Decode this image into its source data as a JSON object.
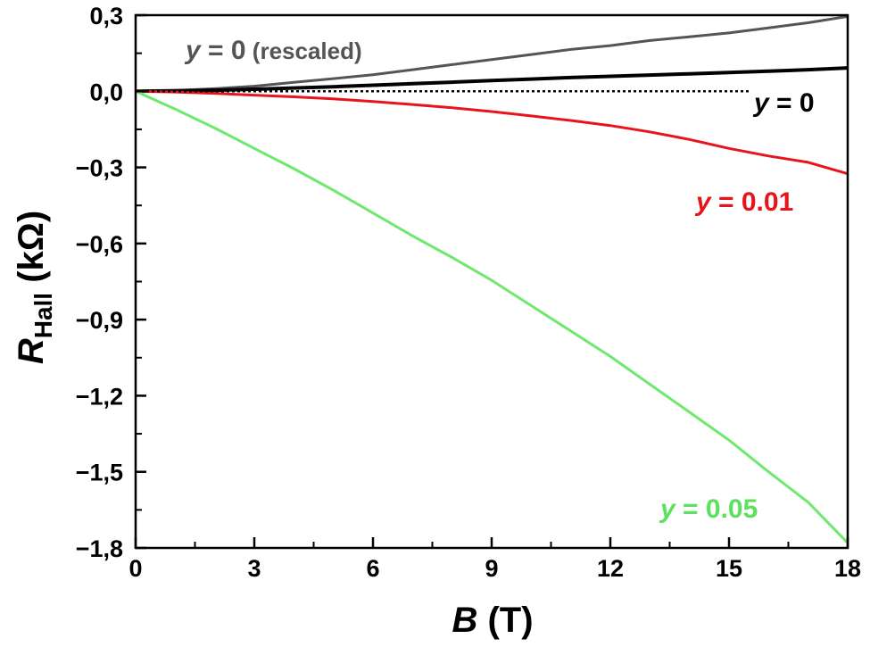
{
  "chart_data": {
    "type": "line",
    "xlabel": {
      "var": "B",
      "unit": " (T)"
    },
    "ylabel": {
      "var": "R",
      "sub": "Hall",
      "unit": " (kΩ)"
    },
    "xlim": [
      0,
      18
    ],
    "ylim": [
      -1.8,
      0.3
    ],
    "x_ticks": [
      {
        "v": 0,
        "label": "0"
      },
      {
        "v": 3,
        "label": "3"
      },
      {
        "v": 6,
        "label": "6"
      },
      {
        "v": 9,
        "label": "9"
      },
      {
        "v": 12,
        "label": "12"
      },
      {
        "v": 15,
        "label": "15"
      },
      {
        "v": 18,
        "label": "18"
      }
    ],
    "y_ticks": [
      {
        "v": 0.3,
        "label": "0,3"
      },
      {
        "v": 0.0,
        "label": "0,0"
      },
      {
        "v": -0.3,
        "label": "−0,3"
      },
      {
        "v": -0.6,
        "label": "−0,6"
      },
      {
        "v": -0.9,
        "label": "−0,9"
      },
      {
        "v": -1.2,
        "label": "−1,2"
      },
      {
        "v": -1.5,
        "label": "−1,5"
      },
      {
        "v": -1.8,
        "label": "−1,8"
      }
    ],
    "grid": false,
    "zero_line": {
      "y": 0,
      "style": "dotted",
      "x_end": 15.5
    },
    "series": [
      {
        "id": "y0-rescaled",
        "color": "#555555",
        "label_var": "y",
        "label_eq": " = 0",
        "label_extra": " (rescaled)",
        "x": [
          0,
          1,
          2,
          3,
          4,
          5,
          6,
          7,
          8,
          9,
          10,
          11,
          12,
          13,
          14,
          15,
          16,
          17,
          18
        ],
        "y": [
          0,
          0.003,
          0.01,
          0.02,
          0.035,
          0.05,
          0.065,
          0.085,
          0.105,
          0.125,
          0.145,
          0.165,
          0.18,
          0.2,
          0.215,
          0.23,
          0.25,
          0.27,
          0.295
        ]
      },
      {
        "id": "y0",
        "color": "#000000",
        "label_var": "y",
        "label_eq": " = 0",
        "label_extra": "",
        "x": [
          0,
          1,
          2,
          3,
          4,
          5,
          6,
          7,
          8,
          9,
          10,
          11,
          12,
          13,
          14,
          15,
          16,
          17,
          18
        ],
        "y": [
          0,
          0.002,
          0.004,
          0.008,
          0.013,
          0.018,
          0.024,
          0.03,
          0.036,
          0.042,
          0.048,
          0.054,
          0.059,
          0.064,
          0.069,
          0.074,
          0.079,
          0.085,
          0.092
        ]
      },
      {
        "id": "y001",
        "color": "#e8141c",
        "label_var": "y",
        "label_eq": " = 0.01",
        "label_extra": "",
        "x": [
          0,
          1,
          2,
          3,
          4,
          5,
          6,
          7,
          8,
          9,
          10,
          11,
          12,
          13,
          14,
          15,
          16,
          17,
          18
        ],
        "y": [
          0,
          -0.003,
          -0.008,
          -0.015,
          -0.022,
          -0.03,
          -0.04,
          -0.052,
          -0.065,
          -0.08,
          -0.097,
          -0.115,
          -0.135,
          -0.16,
          -0.19,
          -0.225,
          -0.255,
          -0.28,
          -0.325
        ]
      },
      {
        "id": "y005",
        "color": "#6ee86e",
        "label_var": "y",
        "label_eq": " = 0.05",
        "label_extra": "",
        "x": [
          0,
          1,
          2,
          3,
          4,
          5,
          6,
          7,
          8,
          9,
          10,
          11,
          12,
          13,
          14,
          15,
          16,
          17,
          18
        ],
        "y": [
          0,
          -0.07,
          -0.145,
          -0.225,
          -0.305,
          -0.39,
          -0.48,
          -0.57,
          -0.655,
          -0.745,
          -0.845,
          -0.945,
          -1.045,
          -1.155,
          -1.265,
          -1.375,
          -1.5,
          -1.62,
          -1.78
        ]
      }
    ]
  }
}
